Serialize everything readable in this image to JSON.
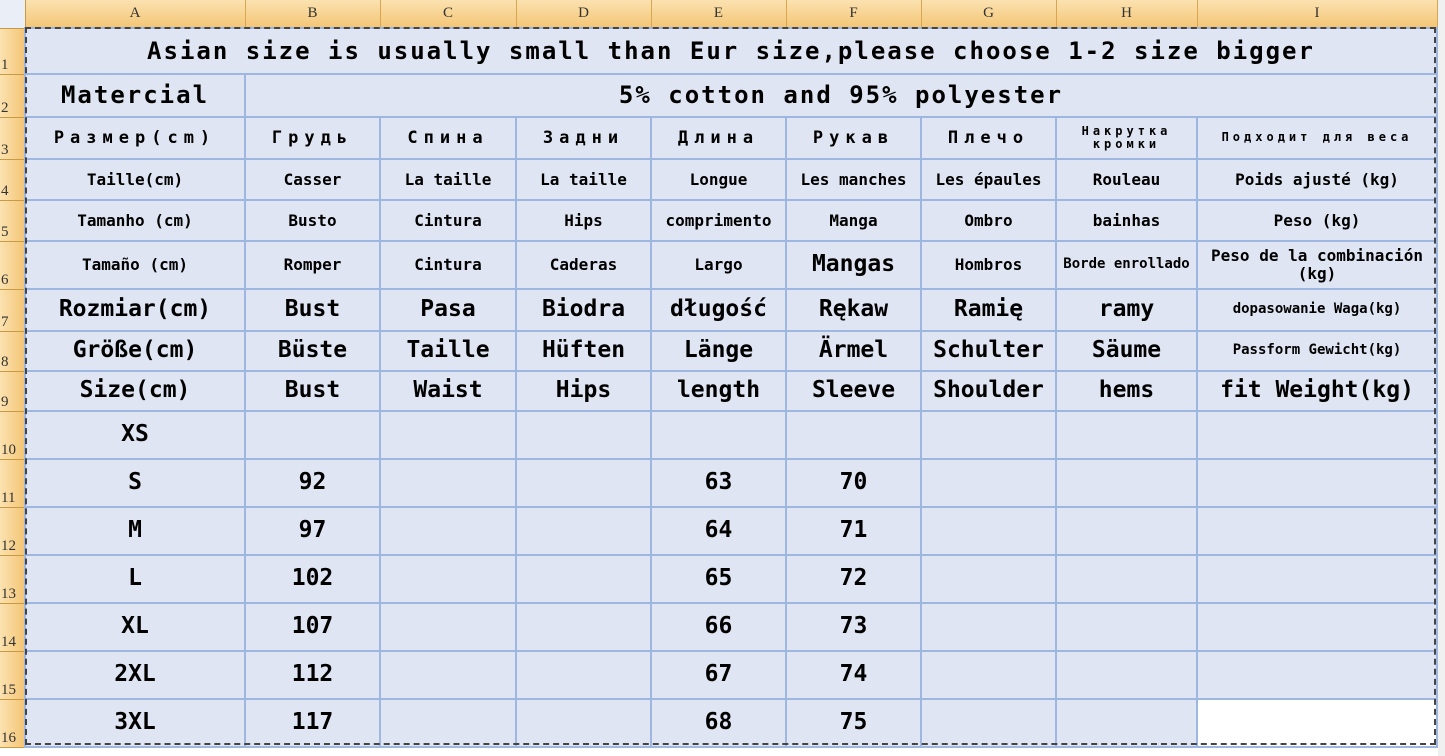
{
  "columns": [
    "A",
    "B",
    "C",
    "D",
    "E",
    "F",
    "G",
    "H",
    "I"
  ],
  "row_numbers": [
    "1",
    "2",
    "3",
    "4",
    "5",
    "6",
    "7",
    "8",
    "9",
    "10",
    "11",
    "12",
    "13",
    "14",
    "15",
    "16"
  ],
  "colors": {
    "cell_bg": "#dfe5f2",
    "grid": "#9db7e0",
    "header": "#f4c677"
  },
  "title": "Asian size is usually small than Eur size,please choose 1-2 size bigger",
  "material": {
    "label": "Matercial",
    "value": "5% cotton and 95% polyester"
  },
  "header_rows": [
    [
      "Размер(cm)",
      "Грудь",
      "Спина",
      "Задни",
      "Длина",
      "Рукав",
      "Плечо",
      "Накрутка кромки",
      "Подходит для веса"
    ],
    [
      "Taille(cm)",
      "Casser",
      "La taille",
      "La taille",
      "Longue",
      "Les manches",
      "Les épaules",
      "Rouleau",
      "Poids ajusté (kg)"
    ],
    [
      "Tamanho (cm)",
      "Busto",
      "Cintura",
      "Hips",
      "comprimento",
      "Manga",
      "Ombro",
      "bainhas",
      "Peso (kg)"
    ],
    [
      "Tamaño (cm)",
      "Romper",
      "Cintura",
      "Caderas",
      "Largo",
      "Mangas",
      "Hombros",
      "Borde enrollado",
      "Peso de la combinación (kg)"
    ],
    [
      "Rozmiar(cm)",
      "Bust",
      "Pasa",
      "Biodra",
      "długość",
      "Rękaw",
      "Ramię",
      "ramy",
      "dopasowanie Waga(kg)"
    ],
    [
      "Größe(cm)",
      "Büste",
      "Taille",
      "Hüften",
      "Länge",
      "Ärmel",
      "Schulter",
      "Säume",
      "Passform Gewicht(kg)"
    ],
    [
      "Size(cm)",
      "Bust",
      "Waist",
      "Hips",
      "length",
      "Sleeve",
      "Shoulder",
      "hems",
      "fit Weight(kg)"
    ]
  ],
  "size_rows": [
    [
      "XS",
      "",
      "",
      "",
      "",
      "",
      "",
      "",
      ""
    ],
    [
      "S",
      "92",
      "",
      "",
      "63",
      "70",
      "",
      "",
      ""
    ],
    [
      "M",
      "97",
      "",
      "",
      "64",
      "71",
      "",
      "",
      ""
    ],
    [
      "L",
      "102",
      "",
      "",
      "65",
      "72",
      "",
      "",
      ""
    ],
    [
      "XL",
      "107",
      "",
      "",
      "66",
      "73",
      "",
      "",
      ""
    ],
    [
      "2XL",
      "112",
      "",
      "",
      "67",
      "74",
      "",
      "",
      ""
    ],
    [
      "3XL",
      "117",
      "",
      "",
      "68",
      "75",
      "",
      "",
      ""
    ]
  ]
}
